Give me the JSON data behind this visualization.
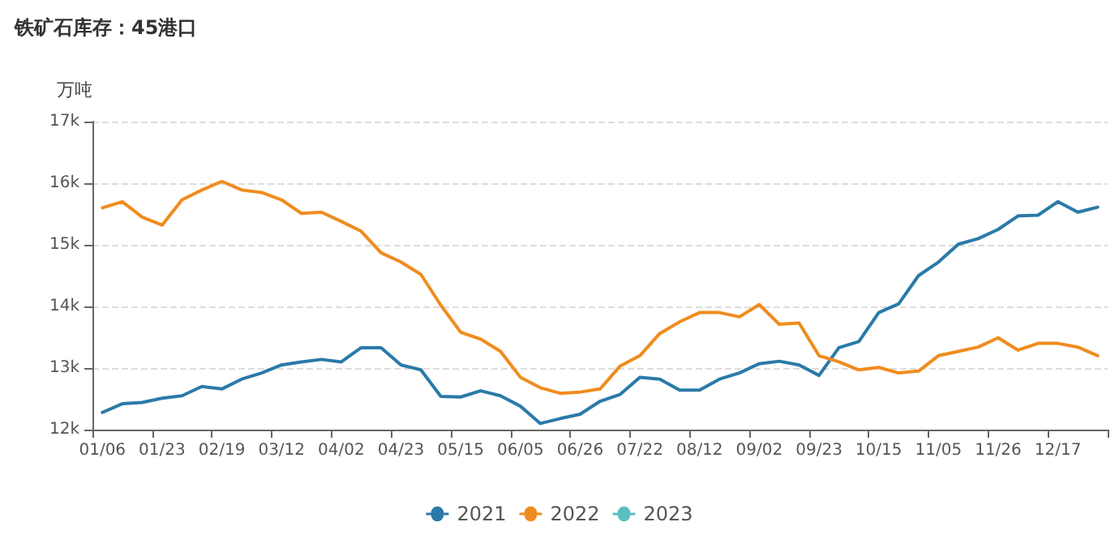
{
  "chart_data": {
    "type": "line",
    "title": "铁矿石库存：45港口",
    "ylabel": "万吨",
    "categories": [
      "01/06",
      null,
      null,
      "01/23",
      null,
      null,
      "02/19",
      null,
      null,
      "03/12",
      null,
      null,
      "04/02",
      null,
      null,
      "04/23",
      null,
      null,
      "05/15",
      null,
      null,
      "06/05",
      null,
      null,
      "06/26",
      null,
      null,
      "07/22",
      null,
      null,
      "08/12",
      null,
      null,
      "09/02",
      null,
      null,
      "09/23",
      null,
      null,
      "10/15",
      null,
      null,
      "11/05",
      null,
      null,
      "11/26",
      null,
      null,
      "12/17",
      null,
      null
    ],
    "series": [
      {
        "name": "2021",
        "color": "#2a7aa8",
        "values": [
          12280,
          12420,
          12440,
          12510,
          12550,
          12700,
          12660,
          12820,
          12920,
          13050,
          13100,
          13140,
          13100,
          13330,
          13330,
          13050,
          12970,
          12540,
          12530,
          12630,
          12550,
          12380,
          12100,
          12180,
          12250,
          12460,
          12570,
          12850,
          12820,
          12640,
          12640,
          12820,
          12920,
          13070,
          13110,
          13050,
          12880,
          13330,
          13430,
          13900,
          14040,
          14500,
          14720,
          15010,
          15100,
          15250,
          15470,
          15480,
          15700,
          15530,
          15610
        ]
      },
      {
        "name": "2022",
        "color": "#f08c1e",
        "values": [
          15600,
          15700,
          15450,
          15320,
          15730,
          15890,
          16030,
          15890,
          15850,
          15730,
          15510,
          15530,
          15380,
          15220,
          14870,
          14720,
          14520,
          14020,
          13580,
          13470,
          13270,
          12850,
          12680,
          12590,
          12610,
          12660,
          13030,
          13200,
          13560,
          13750,
          13900,
          13900,
          13830,
          14030,
          13710,
          13730,
          13200,
          13100,
          12970,
          13010,
          12920,
          12950,
          13200,
          13270,
          13340,
          13490,
          13290,
          13400,
          13400,
          13340,
          13200
        ]
      },
      {
        "name": "2023",
        "color": "#5bbfbf",
        "values": [
          null,
          null,
          null,
          null,
          null,
          null,
          null,
          null,
          null,
          null,
          null,
          null,
          null,
          null,
          null,
          null,
          null,
          null,
          null,
          null,
          null,
          null,
          null,
          null,
          null,
          null,
          null,
          null,
          null,
          null,
          null,
          null,
          null,
          null,
          null,
          null,
          null,
          null,
          null,
          null,
          null,
          null,
          null,
          null,
          null,
          null,
          null,
          null,
          null,
          null,
          null
        ]
      }
    ],
    "ylim": [
      12000,
      17000
    ],
    "yticks": [
      {
        "value": 12000,
        "label": "12k"
      },
      {
        "value": 13000,
        "label": "13k"
      },
      {
        "value": 14000,
        "label": "14k"
      },
      {
        "value": 15000,
        "label": "15k"
      },
      {
        "value": 16000,
        "label": "16k"
      },
      {
        "value": 17000,
        "label": "17k"
      }
    ],
    "grid": "y",
    "legend": "bottom",
    "marker": "none",
    "line_style": "solid"
  }
}
